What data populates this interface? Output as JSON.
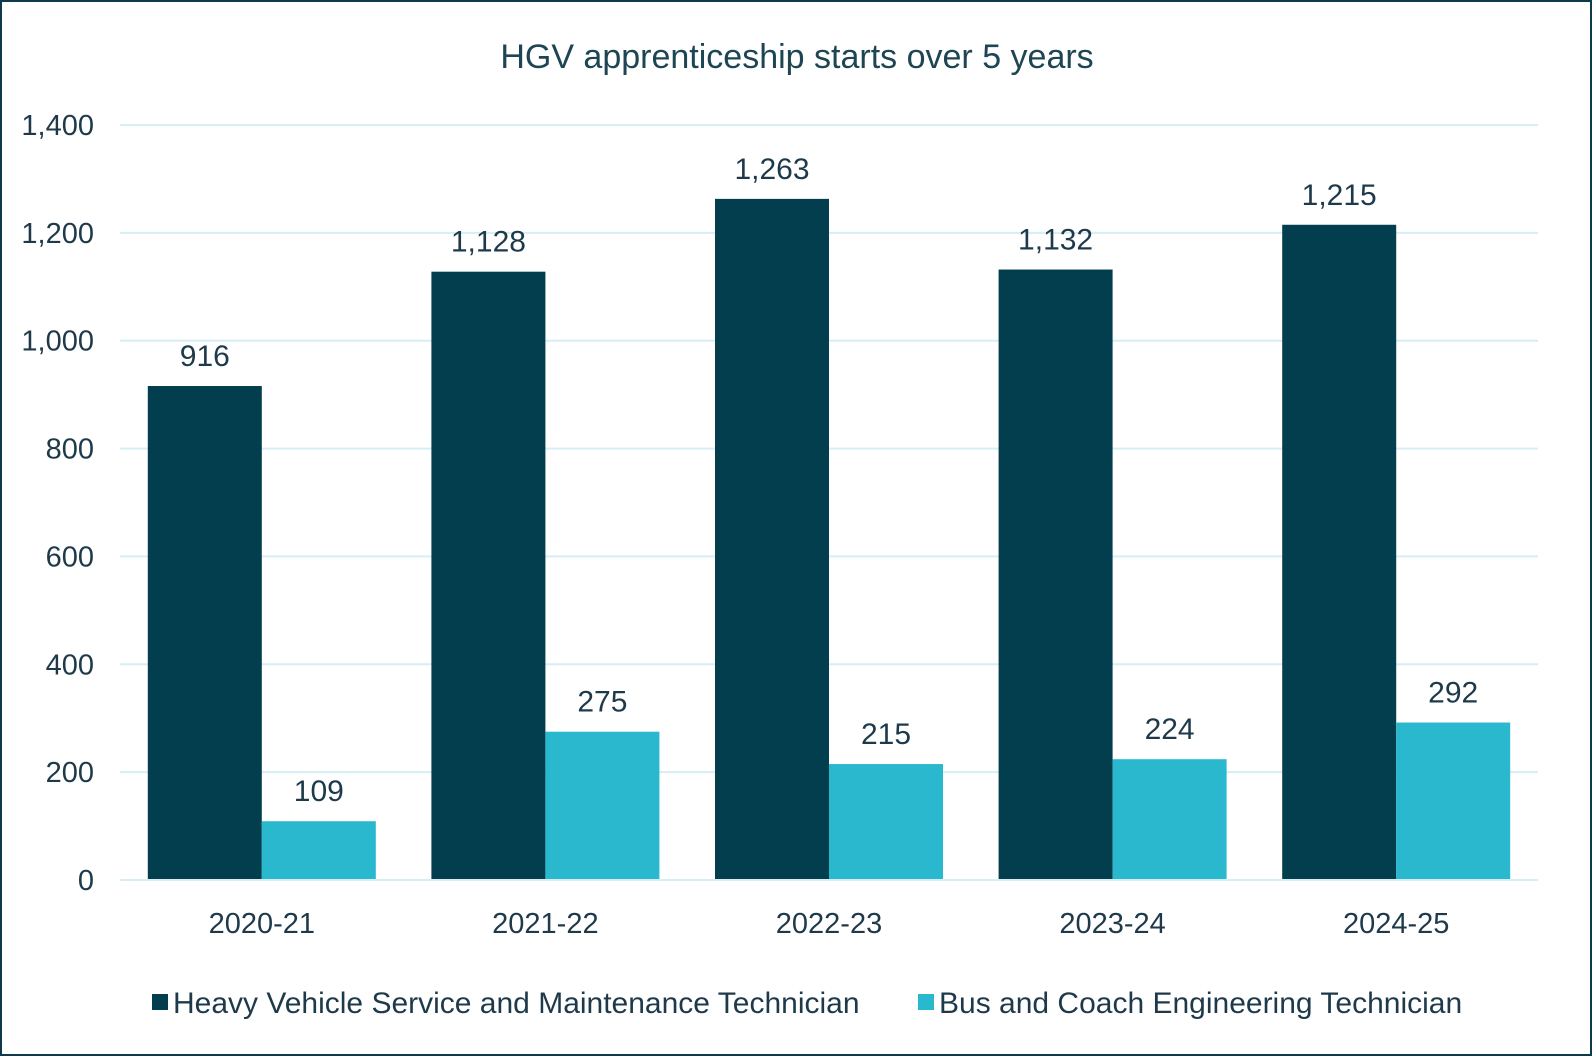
{
  "chart_data": {
    "type": "bar",
    "title": "HGV apprenticeship starts over 5 years",
    "xlabel": "",
    "ylabel": "",
    "categories": [
      "2020-21",
      "2021-22",
      "2022-23",
      "2023-24",
      "2024-25"
    ],
    "series": [
      {
        "name": "Heavy Vehicle Service and Maintenance Technician",
        "color": "#033e4f",
        "values": [
          916,
          1128,
          1263,
          1132,
          1215
        ],
        "labels": [
          "916",
          "1,128",
          "1,263",
          "1,132",
          "1,215"
        ]
      },
      {
        "name": "Bus and Coach Engineering Technician",
        "color": "#29b8ce",
        "values": [
          109,
          275,
          215,
          224,
          292
        ],
        "labels": [
          "109",
          "275",
          "215",
          "224",
          "292"
        ]
      }
    ],
    "ylim": [
      0,
      1400
    ],
    "yticks": [
      0,
      200,
      400,
      600,
      800,
      1000,
      1200,
      1400
    ],
    "ytick_labels": [
      "0",
      "200",
      "400",
      "600",
      "800",
      "1,000",
      "1,200",
      "1,400"
    ],
    "grid": true,
    "gridline_color": "#d6eef5",
    "legend_position": "bottom"
  }
}
